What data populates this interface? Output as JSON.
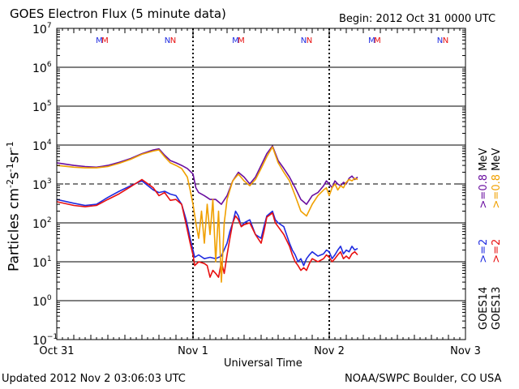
{
  "header": {
    "title": "GOES Electron Flux (5 minute data)",
    "begin": "Begin: 2012 Oct 31 0000 UTC"
  },
  "footer": {
    "updated": "Updated 2012 Nov  2 03:06:03 UTC",
    "credit": "NOAA/SWPC Boulder, CO USA"
  },
  "colors": {
    "goes14_low": "#1f2be0",
    "goes13_low": "#e81010",
    "goes14_high": "#6a0fa0",
    "goes13_high": "#f0a000",
    "grid": "#000000"
  },
  "chart_data": {
    "type": "line",
    "title": "GOES Electron Flux (5 minute data)",
    "xlabel": "Universal Time",
    "ylabel": "Particles cm-2s-1sr-1",
    "ylabel_parts": [
      "Particles cm",
      "-2",
      "s",
      "-1",
      "sr",
      "-1"
    ],
    "xlim": [
      0,
      72
    ],
    "ylim_exponent": [
      -1,
      7
    ],
    "y_scale": "log",
    "x_ticks": [
      {
        "hour": 0,
        "label": "Oct 31"
      },
      {
        "hour": 24,
        "label": "Nov 1"
      },
      {
        "hour": 48,
        "label": "Nov 2"
      },
      {
        "hour": 72,
        "label": "Nov 3"
      }
    ],
    "y_ticks": [
      {
        "exp": 7,
        "label": "10",
        "sup": "7"
      },
      {
        "exp": 6,
        "label": "10",
        "sup": "6"
      },
      {
        "exp": 5,
        "label": "10",
        "sup": "5"
      },
      {
        "exp": 4,
        "label": "10",
        "sup": "4"
      },
      {
        "exp": 3,
        "label": "10",
        "sup": "3"
      },
      {
        "exp": 2,
        "label": "10",
        "sup": "2"
      },
      {
        "exp": 1,
        "label": "10",
        "sup": "1"
      },
      {
        "exp": 0,
        "label": "10",
        "sup": "0"
      },
      {
        "exp": -1,
        "label": "10",
        "sup": "−1"
      }
    ],
    "threshold_exp": 3,
    "day_dividers": [
      24,
      48
    ],
    "mn_markers": [
      {
        "hour": 7.5,
        "label": "M",
        "color": "#1f2be0"
      },
      {
        "hour": 8.5,
        "label": "M",
        "color": "#e81010"
      },
      {
        "hour": 19.5,
        "label": "N",
        "color": "#1f2be0"
      },
      {
        "hour": 20.5,
        "label": "N",
        "color": "#e81010"
      },
      {
        "hour": 31.5,
        "label": "M",
        "color": "#1f2be0"
      },
      {
        "hour": 32.5,
        "label": "M",
        "color": "#e81010"
      },
      {
        "hour": 43.5,
        "label": "N",
        "color": "#1f2be0"
      },
      {
        "hour": 44.5,
        "label": "N",
        "color": "#e81010"
      },
      {
        "hour": 55.5,
        "label": "M",
        "color": "#1f2be0"
      },
      {
        "hour": 56.5,
        "label": "M",
        "color": "#e81010"
      },
      {
        "hour": 67.5,
        "label": "N",
        "color": "#1f2be0"
      },
      {
        "hour": 68.5,
        "label": "N",
        "color": "#e81010"
      }
    ],
    "legend": {
      "goes14": "GOES14",
      "goes13": "GOES13",
      "items": [
        {
          "text": ">=2",
          "color": "#1f2be0"
        },
        {
          "text": ">=0.8",
          "color": "#6a0fa0"
        },
        {
          "text": ">=2",
          "color": "#e81010"
        },
        {
          "text": ">=0.8",
          "color": "#f0a000"
        }
      ],
      "unit": "MeV"
    },
    "series": [
      {
        "name": "GOES14 >=2 MeV",
        "color": "#1f2be0",
        "x": [
          0,
          3,
          5,
          7,
          9,
          11,
          13,
          15,
          17,
          18,
          19,
          20,
          21,
          22,
          22.8,
          23.5,
          24,
          24.3,
          25,
          26,
          27,
          28,
          29,
          30,
          30.5,
          31,
          31.5,
          32,
          32.5,
          33,
          34,
          35,
          36,
          36.5,
          37,
          38,
          38.5,
          39,
          40,
          41,
          41.5,
          42,
          42.5,
          43,
          43.5,
          44,
          44.5,
          45,
          46,
          47,
          47.5,
          48,
          48.5,
          49,
          49.5,
          50,
          50.5,
          51,
          51.5,
          52,
          52.5,
          53
        ],
        "y": [
          400,
          320,
          280,
          300,
          450,
          650,
          900,
          1200,
          700,
          600,
          650,
          550,
          500,
          300,
          120,
          40,
          20,
          13,
          15,
          12,
          13,
          12,
          14,
          30,
          60,
          100,
          200,
          150,
          80,
          100,
          120,
          50,
          40,
          80,
          150,
          200,
          120,
          100,
          80,
          30,
          20,
          15,
          10,
          12,
          8,
          12,
          15,
          18,
          14,
          16,
          20,
          18,
          12,
          15,
          20,
          25,
          16,
          20,
          18,
          25,
          20,
          22
        ]
      },
      {
        "name": "GOES13 >=2 MeV",
        "color": "#e81010",
        "x": [
          0,
          3,
          5,
          7,
          9,
          11,
          13,
          15,
          17,
          18,
          19,
          20,
          21,
          22,
          22.8,
          23.5,
          24,
          24.3,
          25,
          26,
          26.5,
          27,
          27.5,
          28,
          28.5,
          29,
          29.5,
          30,
          30.5,
          31,
          31.5,
          32,
          32.5,
          33,
          34,
          35,
          36,
          36.5,
          37,
          38,
          38.5,
          39,
          40,
          41,
          41.5,
          42,
          42.5,
          43,
          43.5,
          44,
          44.5,
          45,
          46,
          47,
          47.5,
          48,
          48.5,
          49,
          49.5,
          50,
          50.5,
          51,
          51.5,
          52,
          52.5,
          53
        ],
        "y": [
          350,
          280,
          260,
          280,
          400,
          560,
          850,
          1300,
          800,
          500,
          600,
          380,
          400,
          300,
          90,
          30,
          15,
          8,
          10,
          9,
          8,
          4,
          6,
          5,
          4,
          10,
          5,
          15,
          40,
          100,
          150,
          120,
          80,
          90,
          100,
          50,
          30,
          60,
          140,
          180,
          100,
          80,
          50,
          25,
          15,
          10,
          8,
          6,
          7,
          6,
          9,
          12,
          10,
          12,
          15,
          13,
          10,
          12,
          15,
          18,
          12,
          14,
          12,
          16,
          18,
          15
        ]
      },
      {
        "name": "GOES14 >=0.8 MeV",
        "color": "#6a0fa0",
        "x": [
          0,
          3,
          5,
          7,
          9,
          11,
          13,
          15,
          17,
          18,
          19,
          20,
          21,
          22,
          23,
          24,
          24.5,
          25,
          26,
          27,
          28,
          29,
          30,
          31,
          32,
          33,
          34,
          35,
          36,
          37,
          38,
          39,
          40,
          41,
          42,
          43,
          44,
          45,
          46,
          47,
          47.5,
          48,
          48.5,
          49,
          49.5,
          50,
          50.5,
          51,
          51.5,
          52,
          52.5,
          53
        ],
        "y": [
          3500,
          3000,
          2800,
          2700,
          3000,
          3600,
          4500,
          6000,
          7500,
          8000,
          5500,
          4000,
          3500,
          3000,
          2500,
          1800,
          800,
          600,
          500,
          400,
          400,
          300,
          500,
          1200,
          2000,
          1500,
          1000,
          1500,
          3000,
          6000,
          9500,
          4000,
          2500,
          1500,
          800,
          400,
          300,
          500,
          600,
          900,
          1200,
          1000,
          800,
          1200,
          1000,
          900,
          1100,
          1000,
          1400,
          1600,
          1300,
          1500
        ]
      },
      {
        "name": "GOES13 >=0.8 MeV",
        "color": "#f0a000",
        "x": [
          0,
          3,
          5,
          7,
          9,
          11,
          13,
          15,
          17,
          18,
          19,
          20,
          21,
          22,
          23,
          23.5,
          24,
          24.5,
          25,
          25.5,
          26,
          26.5,
          27,
          27.5,
          28,
          28.5,
          29,
          29.5,
          30,
          30.5,
          31,
          32,
          33,
          34,
          35,
          36,
          37,
          38,
          39,
          40,
          41,
          42,
          43,
          44,
          45,
          46,
          47,
          47.5,
          48,
          48.5,
          49,
          49.5,
          50,
          50.5,
          51,
          51.5,
          52,
          52.5,
          53
        ],
        "y": [
          3000,
          2700,
          2600,
          2600,
          2800,
          3400,
          4300,
          5800,
          7000,
          7500,
          5000,
          3500,
          3000,
          2500,
          1500,
          700,
          300,
          100,
          40,
          200,
          30,
          300,
          50,
          400,
          10,
          200,
          3,
          100,
          400,
          700,
          1200,
          1800,
          1200,
          900,
          1300,
          2500,
          5000,
          9000,
          3500,
          2000,
          1200,
          500,
          200,
          150,
          300,
          500,
          700,
          800,
          500,
          800,
          1000,
          700,
          900,
          800,
          1100,
          1300,
          1200,
          1400,
          1300
        ]
      }
    ]
  }
}
